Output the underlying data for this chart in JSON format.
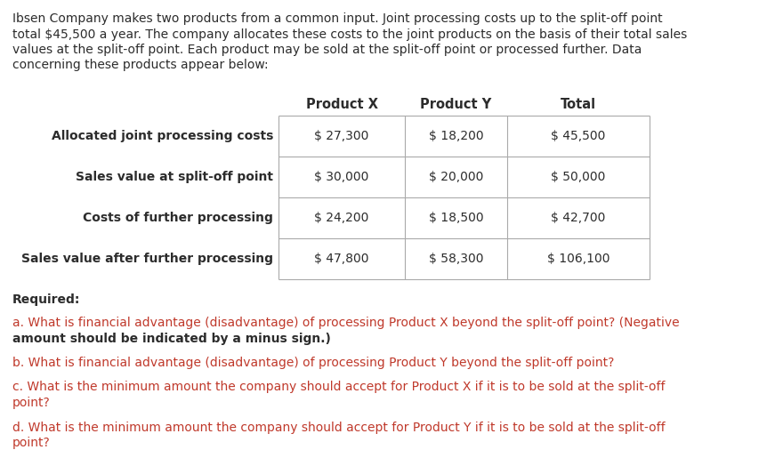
{
  "bg_color": "#ffffff",
  "text_color": "#2c2c2c",
  "red_color": "#c0392b",
  "intro_lines": [
    "Ibsen Company makes two products from a common input. Joint processing costs up to the split-off point",
    "total $45,500 a year. The company allocates these costs to the joint products on the basis of their total sales",
    "values at the split-off point. Each product may be sold at the split-off point or processed further. Data",
    "concerning these products appear below:"
  ],
  "header_row": [
    "Product X",
    "Product Y",
    "Total"
  ],
  "table_rows": [
    [
      "Allocated joint processing costs",
      "$ 27,300",
      "$ 18,200",
      "$ 45,500"
    ],
    [
      "Sales value at split-off point",
      "$ 30,000",
      "$ 20,000",
      "$ 50,000"
    ],
    [
      "Costs of further processing",
      "$ 24,200",
      "$ 18,500",
      "$ 42,700"
    ],
    [
      "Sales value after further processing",
      "$ 47,800",
      "$ 58,300",
      "$ 106,100"
    ]
  ],
  "required_label": "Required:",
  "q_a_normal": "a. What is financial advantage (disadvantage) of processing Product X beyond the split-off point? ",
  "q_a_bold": "(Negative",
  "q_a_bold2": "amount should be indicated by a minus sign.)",
  "q_b": "b. What is financial advantage (disadvantage) of processing Product Y beyond the split-off point?",
  "q_c_line1": "c. What is the minimum amount the company should accept for Product X if it is to be sold at the split-off",
  "q_c_line2": "point?",
  "q_d_line1": "d. What is the minimum amount the company should accept for Product Y if it is to be sold at the split-off",
  "q_d_line2": "point?",
  "font_size": 10.0,
  "line_color": "#aaaaaa",
  "line_width": 0.8
}
